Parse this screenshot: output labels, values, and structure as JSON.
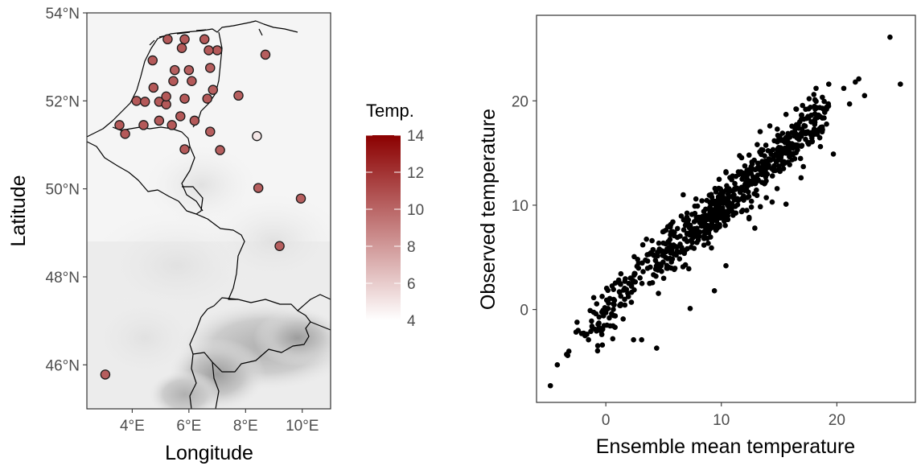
{
  "chart_data": [
    {
      "type": "scatter",
      "kind": "map",
      "xlabel": "Longitude",
      "ylabel": "Latitude",
      "xlim": [
        2.4,
        11.0
      ],
      "ylim": [
        45.0,
        54.0
      ],
      "x_ticks": [
        {
          "value": 4,
          "label": "4°E"
        },
        {
          "value": 6,
          "label": "6°E"
        },
        {
          "value": 8,
          "label": "8°E"
        },
        {
          "value": 10,
          "label": "10°E"
        }
      ],
      "y_ticks": [
        {
          "value": 46,
          "label": "46°N"
        },
        {
          "value": 48,
          "label": "48°N"
        },
        {
          "value": 50,
          "label": "50°N"
        },
        {
          "value": 52,
          "label": "52°N"
        },
        {
          "value": 54,
          "label": "54°N"
        }
      ],
      "legend": {
        "title": "Temp.",
        "placement": "right",
        "range": [
          4,
          14
        ],
        "ticks": [
          4,
          6,
          8,
          10,
          12,
          14
        ],
        "low_color": "#ffffff",
        "high_color": "#8b0000"
      },
      "background": "terrain hillshade (grey)",
      "stations": [
        {
          "lon": 5.25,
          "lat": 53.4,
          "temp": 10.5
        },
        {
          "lon": 5.85,
          "lat": 53.4,
          "temp": 10.5
        },
        {
          "lon": 6.55,
          "lat": 53.4,
          "temp": 10.5
        },
        {
          "lon": 7.0,
          "lat": 53.15,
          "temp": 10.5
        },
        {
          "lon": 6.7,
          "lat": 53.15,
          "temp": 10.5
        },
        {
          "lon": 5.75,
          "lat": 53.2,
          "temp": 10.5
        },
        {
          "lon": 4.72,
          "lat": 52.92,
          "temp": 10.5
        },
        {
          "lon": 8.7,
          "lat": 53.05,
          "temp": 10.3
        },
        {
          "lon": 5.5,
          "lat": 52.7,
          "temp": 10.3
        },
        {
          "lon": 6.0,
          "lat": 52.7,
          "temp": 10.3
        },
        {
          "lon": 6.75,
          "lat": 52.75,
          "temp": 10.3
        },
        {
          "lon": 5.45,
          "lat": 52.45,
          "temp": 10.5
        },
        {
          "lon": 6.1,
          "lat": 52.45,
          "temp": 10.5
        },
        {
          "lon": 4.75,
          "lat": 52.3,
          "temp": 10.5
        },
        {
          "lon": 6.85,
          "lat": 52.25,
          "temp": 10.3
        },
        {
          "lon": 4.15,
          "lat": 52.0,
          "temp": 10.5
        },
        {
          "lon": 4.45,
          "lat": 51.98,
          "temp": 10.5
        },
        {
          "lon": 4.95,
          "lat": 51.98,
          "temp": 10.5
        },
        {
          "lon": 5.2,
          "lat": 51.92,
          "temp": 10.5
        },
        {
          "lon": 5.2,
          "lat": 52.1,
          "temp": 10.5
        },
        {
          "lon": 5.85,
          "lat": 52.05,
          "temp": 10.5
        },
        {
          "lon": 6.65,
          "lat": 52.05,
          "temp": 10.5
        },
        {
          "lon": 7.75,
          "lat": 52.12,
          "temp": 10.3
        },
        {
          "lon": 5.7,
          "lat": 51.65,
          "temp": 10.5
        },
        {
          "lon": 6.2,
          "lat": 51.55,
          "temp": 10.5
        },
        {
          "lon": 4.95,
          "lat": 51.55,
          "temp": 10.5
        },
        {
          "lon": 3.55,
          "lat": 51.45,
          "temp": 10.5
        },
        {
          "lon": 4.4,
          "lat": 51.45,
          "temp": 10.5
        },
        {
          "lon": 5.4,
          "lat": 51.45,
          "temp": 10.5
        },
        {
          "lon": 3.75,
          "lat": 51.25,
          "temp": 10.5
        },
        {
          "lon": 6.75,
          "lat": 51.3,
          "temp": 10.3
        },
        {
          "lon": 8.4,
          "lat": 51.2,
          "temp": 5.0
        },
        {
          "lon": 5.85,
          "lat": 50.9,
          "temp": 10.5
        },
        {
          "lon": 7.1,
          "lat": 50.88,
          "temp": 10.3
        },
        {
          "lon": 8.45,
          "lat": 50.02,
          "temp": 10.3
        },
        {
          "lon": 9.95,
          "lat": 49.78,
          "temp": 10.3
        },
        {
          "lon": 9.2,
          "lat": 48.7,
          "temp": 10.3
        },
        {
          "lon": 3.05,
          "lat": 45.78,
          "temp": 10.3
        }
      ]
    },
    {
      "type": "scatter",
      "xlabel": "Ensemble mean temperature",
      "ylabel": "Observed temperature",
      "xlim": [
        -6,
        26.8
      ],
      "ylim": [
        -8.9,
        28.2
      ],
      "x_ticks": [
        0,
        10,
        20
      ],
      "y_ticks": [
        0,
        10,
        20
      ],
      "grid": false,
      "point_color": "#000000",
      "n_points": 760,
      "points": [
        [
          -4.8,
          -7.3
        ],
        [
          -4.2,
          -5.3
        ],
        [
          -3.4,
          -4.3
        ],
        [
          -3.3,
          -4.4
        ],
        [
          -3.2,
          -4.0
        ],
        [
          -2.4,
          -2.0
        ],
        [
          -2.1,
          -2.3
        ],
        [
          -1.8,
          -2.5
        ],
        [
          -1.5,
          -2.9
        ],
        [
          -1.3,
          -2.1
        ],
        [
          -1.2,
          -1.6
        ],
        [
          -0.9,
          -1.9
        ],
        [
          -0.6,
          -1.3
        ],
        [
          -0.4,
          -2.1
        ],
        [
          -0.3,
          -3.4
        ],
        [
          -0.2,
          -0.6
        ],
        [
          0.0,
          -0.3
        ],
        [
          0.1,
          -1.5
        ],
        [
          0.2,
          0.1
        ],
        [
          0.3,
          -0.8
        ],
        [
          0.5,
          -0.4
        ],
        [
          0.6,
          -2.8
        ],
        [
          0.8,
          -1.7
        ],
        [
          1.2,
          0.4
        ],
        [
          1.5,
          -0.9
        ],
        [
          2.4,
          -2.9
        ],
        [
          3.1,
          -2.9
        ],
        [
          4.4,
          -3.7
        ],
        [
          7.3,
          0.1
        ],
        [
          9.4,
          1.8
        ],
        [
          10.4,
          4.2
        ],
        [
          12.4,
          8.7
        ],
        [
          12.9,
          7.8
        ],
        [
          14.4,
          10.3
        ],
        [
          15.6,
          10.1
        ],
        [
          17.1,
          13.7
        ],
        [
          19.7,
          14.9
        ],
        [
          21.1,
          19.7
        ],
        [
          21.6,
          21.8
        ],
        [
          21.9,
          22.1
        ],
        [
          22.4,
          20.5
        ],
        [
          24.6,
          26.1
        ],
        [
          25.5,
          21.6
        ],
        [
          19.3,
          21.6
        ],
        [
          18.2,
          21.2
        ],
        [
          20.6,
          21.2
        ],
        [
          3.2,
          6.2
        ],
        [
          4.0,
          6.6
        ],
        [
          5.2,
          7.6
        ],
        [
          6.7,
          11.0
        ],
        [
          7.8,
          10.6
        ],
        [
          9.1,
          10.3
        ],
        [
          10.4,
          13.2
        ],
        [
          12.4,
          14.8
        ],
        [
          14.2,
          17.6
        ],
        [
          15.6,
          18.7
        ],
        [
          16.5,
          19.2
        ],
        [
          17.6,
          20.2
        ],
        [
          11.8,
          12.5
        ],
        [
          12.2,
          9.5
        ]
      ],
      "cloud": {
        "n": 700,
        "x_range": [
          -1.5,
          21
        ],
        "slope": 1.0,
        "intercept": -0.1,
        "spread": 1.2
      }
    }
  ]
}
